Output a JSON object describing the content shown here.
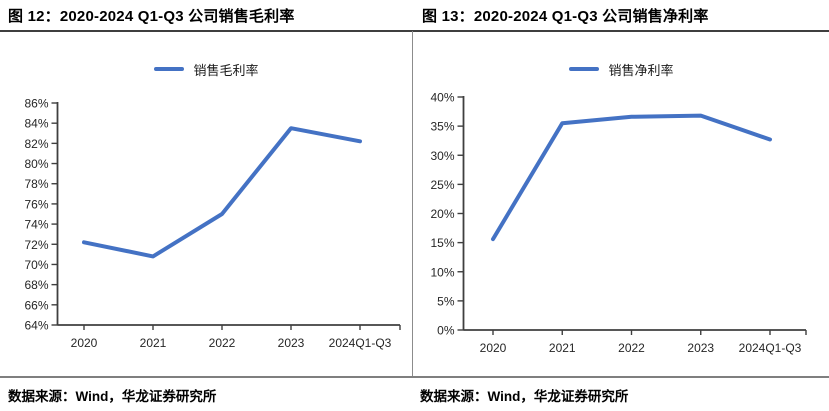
{
  "figures": [
    {
      "title": "图 12：2020-2024 Q1-Q3 公司销售毛利率",
      "source": "数据来源：Wind，华龙证券研究所"
    },
    {
      "title": "图 13：2020-2024 Q1-Q3 公司销售净利率",
      "source": "数据来源：Wind，华龙证券研究所"
    }
  ],
  "chart_data": [
    {
      "type": "line",
      "title": "2020-2024 Q1-Q3 公司销售毛利率",
      "legend": [
        "销售毛利率"
      ],
      "legend_position": "top-center",
      "grid": false,
      "categories": [
        "2020",
        "2021",
        "2022",
        "2023",
        "2024Q1-Q3"
      ],
      "series": [
        {
          "name": "销售毛利率",
          "values": [
            72.2,
            70.8,
            75.0,
            83.5,
            82.2
          ]
        }
      ],
      "unit": "%",
      "xlabel": "",
      "ylabel": "",
      "ylim": [
        64,
        86
      ],
      "ytick_step": 2,
      "ytick_labels": [
        "86%",
        "84%",
        "82%",
        "80%",
        "78%",
        "76%",
        "74%",
        "72%",
        "70%",
        "68%",
        "66%",
        "64%"
      ],
      "line_color": "#4472C4"
    },
    {
      "type": "line",
      "title": "2020-2024 Q1-Q3 公司销售净利率",
      "legend": [
        "销售净利率"
      ],
      "legend_position": "top-center",
      "grid": false,
      "categories": [
        "2020",
        "2021",
        "2022",
        "2023",
        "2024Q1-Q3"
      ],
      "series": [
        {
          "name": "销售净利率",
          "values": [
            15.6,
            35.5,
            36.6,
            36.8,
            32.7
          ]
        }
      ],
      "unit": "%",
      "xlabel": "",
      "ylabel": "",
      "ylim": [
        0,
        40
      ],
      "ytick_step": 5,
      "ytick_labels": [
        "40%",
        "35%",
        "30%",
        "25%",
        "20%",
        "15%",
        "10%",
        "5%",
        "0%"
      ],
      "line_color": "#4472C4"
    }
  ],
  "colors": {
    "line_blue": "#4472C4",
    "axis": "#3f3f3f",
    "tick_label": "#262626",
    "rule_top": "#3f3f3f",
    "rule_bottom": "#7f7f7f",
    "divider": "#8c8c8c"
  }
}
